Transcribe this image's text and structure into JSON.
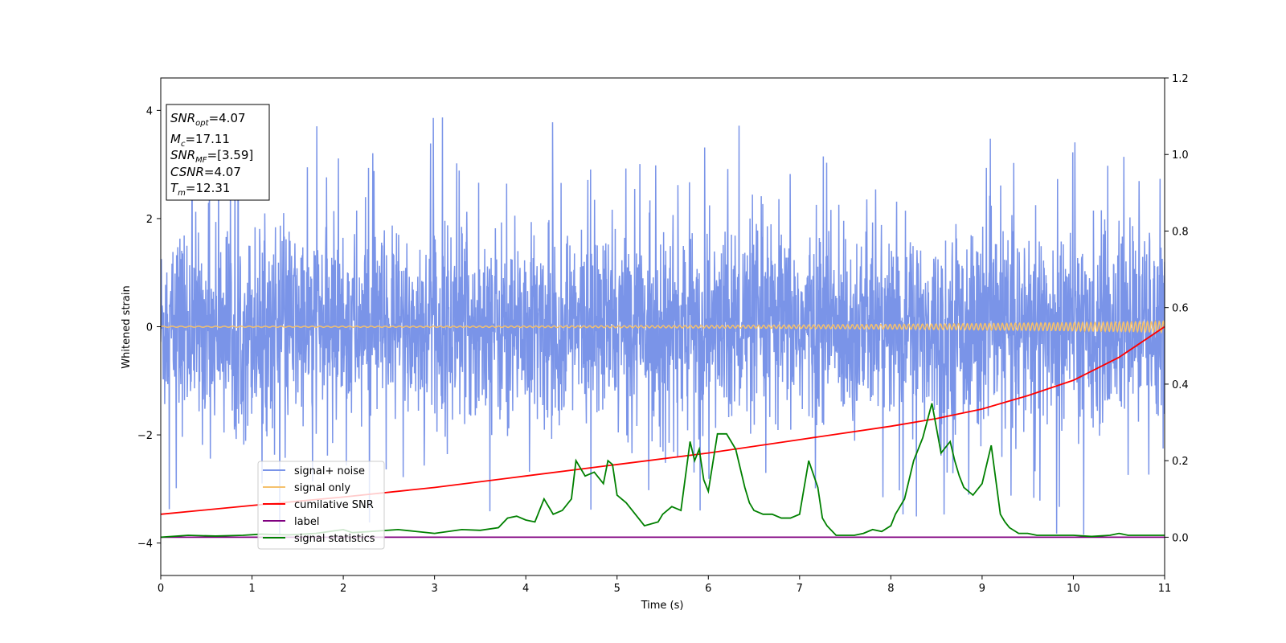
{
  "chart_data": {
    "type": "line",
    "xlabel": "Time (s)",
    "ylabel": "Whitened strain",
    "xlim": [
      0,
      11
    ],
    "ylim": [
      -4.6,
      4.6
    ],
    "y2lim": [
      -0.1,
      1.2
    ],
    "x_ticks": [
      "0",
      "1",
      "2",
      "3",
      "4",
      "5",
      "6",
      "7",
      "8",
      "9",
      "10",
      "11"
    ],
    "y_ticks": [
      "4",
      "2",
      "0",
      "−2",
      "−4"
    ],
    "y2_ticks": [
      "1.2",
      "1.0",
      "0.8",
      "0.6",
      "0.4",
      "0.2",
      "0.0"
    ],
    "info_box": {
      "snr_opt": {
        "base": "SNR",
        "sub": "opt",
        "value": "=4.07"
      },
      "mc": {
        "base": "M",
        "sub": "c",
        "value": "=17.11"
      },
      "snr_mf": {
        "base": "SNR",
        "sub": "MF",
        "value": "=[3.59]"
      },
      "csnr": {
        "base": "CSNR",
        "value": "=4.07"
      },
      "tm": {
        "base": "T",
        "sub": "m",
        "value": "=12.31"
      }
    },
    "legend": {
      "placement": "lower-left",
      "entries": [
        {
          "label": "signal+ noise",
          "color": "#7a94e8"
        },
        {
          "label": "signal only",
          "color": "#f5c16c"
        },
        {
          "label": "cumilative SNR",
          "color": "#ff0000"
        },
        {
          "label": "label",
          "color": "#800080"
        },
        {
          "label": "signal statistics",
          "color": "#008000"
        }
      ]
    },
    "series": [
      {
        "name": "signal+ noise",
        "axis": "left",
        "color": "#7a94e8",
        "kind": "noise",
        "approx_envelope": {
          "upper_typical": 2.2,
          "upper_peak": 4.15,
          "lower_typical": -1.9,
          "lower_peak": -4.2
        }
      },
      {
        "name": "signal only",
        "axis": "left",
        "color": "#f5c16c",
        "kind": "chirp",
        "amplitude_start": 0.01,
        "amplitude_end": 0.1
      },
      {
        "name": "cumilative SNR",
        "axis": "right",
        "x": [
          0,
          1,
          2,
          3,
          4,
          5,
          6,
          7,
          8,
          8.5,
          9,
          9.5,
          10,
          10.5,
          11
        ],
        "y": [
          0.06,
          0.083,
          0.105,
          0.13,
          0.16,
          0.19,
          0.22,
          0.255,
          0.29,
          0.31,
          0.335,
          0.37,
          0.41,
          0.47,
          0.55
        ]
      },
      {
        "name": "label",
        "axis": "right",
        "x": [
          0,
          11
        ],
        "y": [
          0.0,
          0.0
        ]
      },
      {
        "name": "signal statistics",
        "axis": "right",
        "x": [
          0,
          0.3,
          0.6,
          0.9,
          1.1,
          1.4,
          1.7,
          2.0,
          2.1,
          2.3,
          2.6,
          2.8,
          3.0,
          3.3,
          3.5,
          3.7,
          3.8,
          3.9,
          4.0,
          4.1,
          4.2,
          4.3,
          4.4,
          4.5,
          4.55,
          4.65,
          4.75,
          4.85,
          4.9,
          4.95,
          5.0,
          5.1,
          5.2,
          5.3,
          5.45,
          5.5,
          5.6,
          5.7,
          5.8,
          5.85,
          5.9,
          5.95,
          6.0,
          6.1,
          6.2,
          6.3,
          6.4,
          6.45,
          6.5,
          6.6,
          6.7,
          6.8,
          6.9,
          7.0,
          7.1,
          7.2,
          7.25,
          7.3,
          7.4,
          7.5,
          7.6,
          7.7,
          7.8,
          7.9,
          8.0,
          8.05,
          8.15,
          8.25,
          8.35,
          8.45,
          8.55,
          8.65,
          8.7,
          8.75,
          8.8,
          8.9,
          9.0,
          9.1,
          9.2,
          9.25,
          9.3,
          9.4,
          9.5,
          9.6,
          9.8,
          10.0,
          10.2,
          10.4,
          10.5,
          10.6,
          10.8,
          11.0
        ],
        "y": [
          0.0,
          0.005,
          0.003,
          0.005,
          0.008,
          0.006,
          0.01,
          0.02,
          0.012,
          0.015,
          0.02,
          0.015,
          0.01,
          0.02,
          0.018,
          0.025,
          0.05,
          0.055,
          0.045,
          0.04,
          0.1,
          0.06,
          0.07,
          0.1,
          0.2,
          0.16,
          0.17,
          0.14,
          0.2,
          0.19,
          0.11,
          0.09,
          0.06,
          0.03,
          0.04,
          0.06,
          0.08,
          0.07,
          0.25,
          0.2,
          0.23,
          0.15,
          0.12,
          0.27,
          0.27,
          0.23,
          0.13,
          0.09,
          0.07,
          0.06,
          0.06,
          0.05,
          0.05,
          0.06,
          0.2,
          0.13,
          0.05,
          0.03,
          0.005,
          0.005,
          0.005,
          0.01,
          0.02,
          0.015,
          0.03,
          0.06,
          0.1,
          0.2,
          0.26,
          0.35,
          0.22,
          0.25,
          0.2,
          0.16,
          0.13,
          0.11,
          0.14,
          0.24,
          0.06,
          0.04,
          0.025,
          0.01,
          0.01,
          0.005,
          0.005,
          0.005,
          0.002,
          0.005,
          0.01,
          0.005,
          0.005,
          0.005
        ]
      }
    ]
  }
}
